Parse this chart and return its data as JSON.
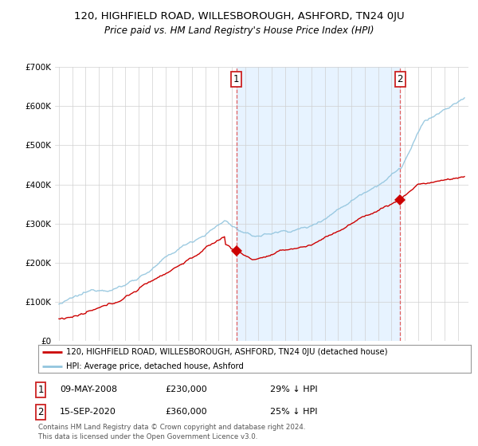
{
  "title": "120, HIGHFIELD ROAD, WILLESBOROUGH, ASHFORD, TN24 0JU",
  "subtitle": "Price paid vs. HM Land Registry's House Price Index (HPI)",
  "sale1_price": 230000,
  "sale2_price": 360000,
  "property_color": "#cc0000",
  "hpi_color": "#92c5de",
  "shade_color": "#ddeeff",
  "legend_property": "120, HIGHFIELD ROAD, WILLESBOROUGH, ASHFORD, TN24 0JU (detached house)",
  "legend_hpi": "HPI: Average price, detached house, Ashford",
  "annotation1": "09-MAY-2008",
  "annotation1_price": "£230,000",
  "annotation1_hpi": "29% ↓ HPI",
  "annotation2": "15-SEP-2020",
  "annotation2_price": "£360,000",
  "annotation2_hpi": "25% ↓ HPI",
  "footer": "Contains HM Land Registry data © Crown copyright and database right 2024.\nThis data is licensed under the Open Government Licence v3.0.",
  "ylim_min": 0,
  "ylim_max": 700000,
  "background_color": "#ffffff"
}
